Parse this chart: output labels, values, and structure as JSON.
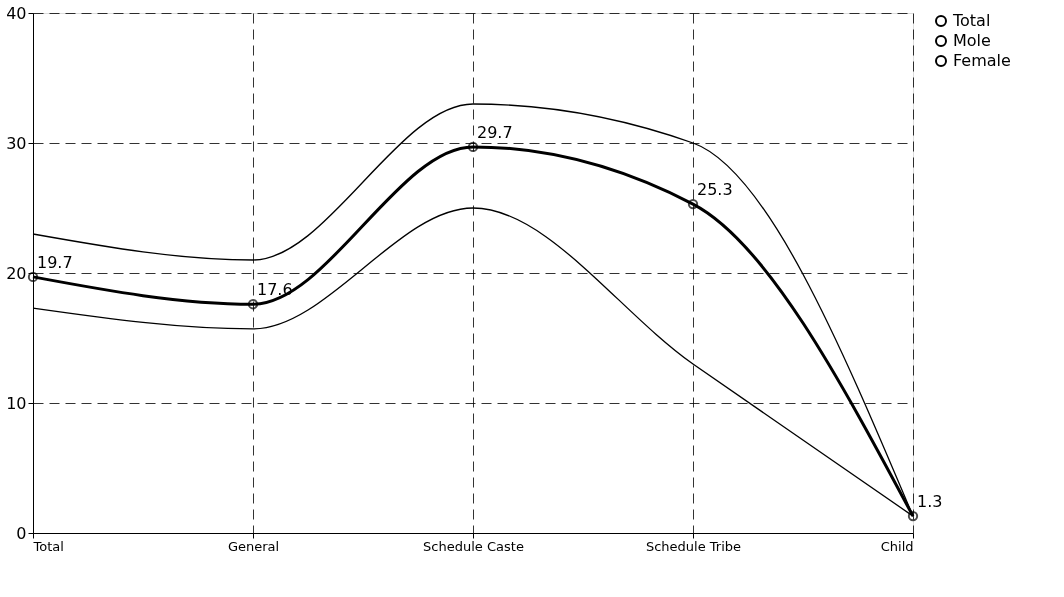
{
  "chart_data": {
    "type": "line",
    "categories": [
      "Total",
      "General",
      "Schedule Caste",
      "Schedule Tribe",
      "Child"
    ],
    "series": [
      {
        "name": "Total",
        "color": "#000000",
        "values": [
          19.7,
          17.6,
          29.7,
          25.3,
          1.3
        ],
        "marker": "circle",
        "value_labels": [
          "19.7",
          "17.6",
          "29.7",
          "25.3",
          "1.3"
        ]
      },
      {
        "name": "Mole",
        "color": "#000000",
        "values": [
          23,
          21,
          33,
          30,
          1.3
        ],
        "marker": "none"
      },
      {
        "name": "Female",
        "color": "#000000",
        "values": [
          17.3,
          15.7,
          25,
          13,
          1.3
        ],
        "marker": "none"
      }
    ],
    "ylim": [
      0,
      40
    ],
    "yticks": [
      0,
      10,
      20,
      30,
      40
    ],
    "grid": true,
    "legend": "top right",
    "line_style": "solid"
  }
}
